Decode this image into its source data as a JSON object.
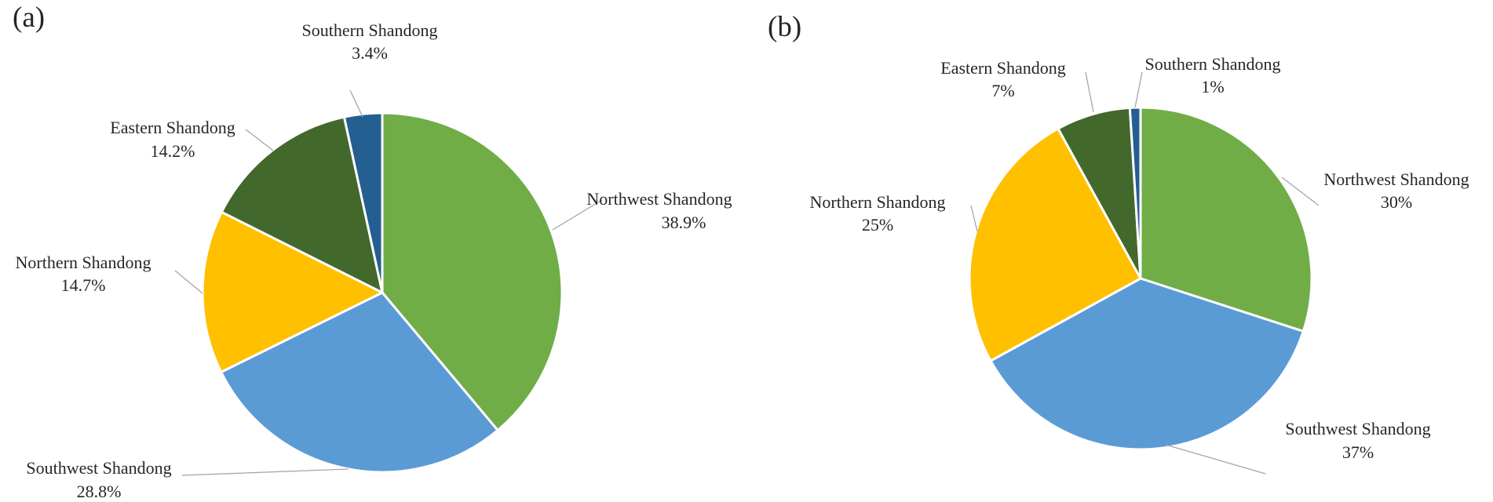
{
  "figure": {
    "colors": {
      "Northwest Shandong": "#70ad47",
      "Southwest Shandong": "#5b9bd5",
      "Northern Shandong": "#ffc000",
      "Eastern Shandong": "#43682b",
      "Southern Shandong": "#255e91"
    },
    "slice_border": "#ffffff",
    "leader_color": "#a6a6a6"
  },
  "chart_data": [
    {
      "type": "pie",
      "panel_label": "(a)",
      "title": "",
      "slices": [
        {
          "name": "Northwest Shandong",
          "value": 38.9,
          "label_value": "38.9%"
        },
        {
          "name": "Southwest Shandong",
          "value": 28.8,
          "label_value": "28.8%"
        },
        {
          "name": "Northern Shandong",
          "value": 14.7,
          "label_value": "14.7%"
        },
        {
          "name": "Eastern Shandong",
          "value": 14.2,
          "label_value": "14.2%"
        },
        {
          "name": "Southern Shandong",
          "value": 3.4,
          "label_value": "3.4%"
        }
      ],
      "start": "12 o'clock",
      "direction": "clockwise",
      "legend": "none"
    },
    {
      "type": "pie",
      "panel_label": "(b)",
      "title": "",
      "slices": [
        {
          "name": "Northwest Shandong",
          "value": 30,
          "label_value": "30%"
        },
        {
          "name": "Southwest Shandong",
          "value": 37,
          "label_value": "37%"
        },
        {
          "name": "Northern Shandong",
          "value": 25,
          "label_value": "25%"
        },
        {
          "name": "Eastern Shandong",
          "value": 7,
          "label_value": "7%"
        },
        {
          "name": "Southern Shandong",
          "value": 1,
          "label_value": "1%"
        }
      ],
      "start": "12 o'clock",
      "direction": "clockwise",
      "legend": "none"
    }
  ]
}
